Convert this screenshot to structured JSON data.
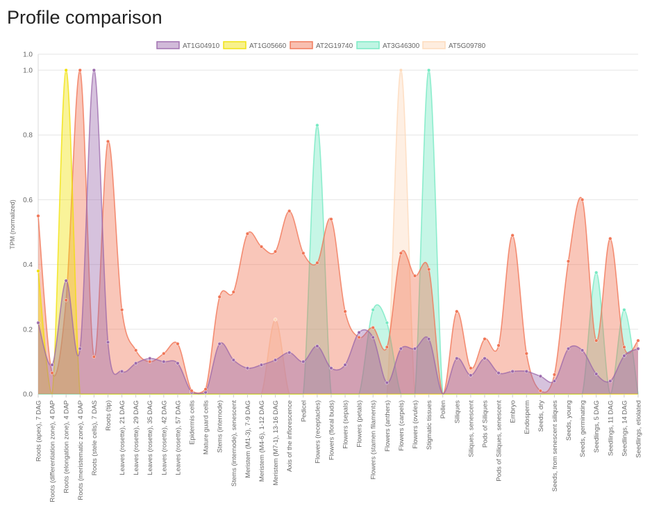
{
  "page": {
    "title": "Profile comparison"
  },
  "chart_data": {
    "type": "area",
    "title": "",
    "xlabel": "",
    "ylabel": "TPM (normalized)",
    "ylim": [
      0,
      1.0
    ],
    "yticks": [
      "0.0",
      "0.2",
      "0.4",
      "0.6",
      "0.8",
      "1.0"
    ],
    "ymax_label": "1.0",
    "grid": true,
    "legend_position": "top",
    "categories": [
      "Roots (apex), 7 DAG",
      "Roots (differentiation zone), 4 DAP",
      "Roots (elongation zone), 4 DAP",
      "Roots (meristematic zone), 4 DAP",
      "Roots (stele cells), 7 DAS",
      "Roots (tip)",
      "Leaves (rosette), 21 DAG",
      "Leaves (rosette), 29 DAG",
      "Leaves (rosette), 35 DAG",
      "Leaves (rosette), 42 DAG",
      "Leaves (rosette), 57 DAG",
      "Epidermis cells",
      "Mature guard cells",
      "Stems (internode)",
      "Stems (internode), senescent",
      "Meristem (M1-3), 7-9 DAG",
      "Meristem (M4-6), 1-12 DAG",
      "Meristem (M7-1), 13-16 DAG",
      "Axis of the inflorescence",
      "Pedicel",
      "Flowers (receptacles)",
      "Flowers (floral buds)",
      "Flowers (sepals)",
      "Flowers (petals)",
      "Flowers (stamen filaments)",
      "Flowers (anthers)",
      "Flowers (carpels)",
      "Flowers (ovules)",
      "Stigmatic tissues",
      "Pollen",
      "Siliques",
      "Siliques, senescent",
      "Pods of Siliques",
      "Pods of Siliques, senescent",
      "Embryo",
      "Endosperm",
      "Seeds, dry",
      "Seeds, from senescent siliques",
      "Seeds, young",
      "Seeds, germinating",
      "Seedlings, 5 DAG",
      "Seedlings, 11 DAG",
      "Seedlings, 14 DAG",
      "Seedlings, etiolated"
    ],
    "series": [
      {
        "name": "AT1G04910",
        "color": "#9966aa",
        "values": [
          0.22,
          0.09,
          0.35,
          0.14,
          1.0,
          0.16,
          0.07,
          0.095,
          0.11,
          0.1,
          0.095,
          0.005,
          0.005,
          0.155,
          0.105,
          0.08,
          0.09,
          0.105,
          0.128,
          0.1,
          0.148,
          0.08,
          0.09,
          0.19,
          0.175,
          0.035,
          0.14,
          0.14,
          0.17,
          0.0,
          0.11,
          0.058,
          0.11,
          0.065,
          0.07,
          0.07,
          0.055,
          0.04,
          0.14,
          0.135,
          0.062,
          0.04,
          0.118,
          0.14
        ]
      },
      {
        "name": "AT1G05660",
        "color": "#f0e000",
        "values": [
          0.38,
          0.0,
          1.0,
          0.0,
          0.0,
          0.0,
          0.0,
          0.0,
          0.0,
          0.0,
          0.0,
          0.0,
          0.0,
          0.0,
          0.0,
          0.0,
          0.0,
          0.0,
          0.0,
          0.0,
          0.0,
          0.0,
          0.0,
          0.0,
          0.0,
          0.0,
          0.0,
          0.0,
          0.0,
          0.0,
          0.0,
          0.0,
          0.0,
          0.0,
          0.0,
          0.0,
          0.0,
          0.0,
          0.0,
          0.0,
          0.0,
          0.0,
          0.0,
          0.0
        ]
      },
      {
        "name": "AT2G19740",
        "color": "#f07050",
        "values": [
          0.55,
          0.065,
          0.29,
          1.0,
          0.115,
          0.78,
          0.26,
          0.135,
          0.1,
          0.125,
          0.155,
          0.01,
          0.015,
          0.3,
          0.315,
          0.495,
          0.455,
          0.44,
          0.565,
          0.435,
          0.405,
          0.54,
          0.255,
          0.175,
          0.205,
          0.145,
          0.435,
          0.365,
          0.385,
          0.0,
          0.255,
          0.08,
          0.17,
          0.15,
          0.49,
          0.125,
          0.01,
          0.06,
          0.41,
          0.6,
          0.165,
          0.48,
          0.145,
          0.165
        ]
      },
      {
        "name": "AT3G46300",
        "color": "#70e8c0",
        "values": [
          0.0,
          0.0,
          0.0,
          0.0,
          0.0,
          0.0,
          0.0,
          0.0,
          0.0,
          0.0,
          0.0,
          0.0,
          0.0,
          0.0,
          0.0,
          0.0,
          0.0,
          0.0,
          0.0,
          0.0,
          0.83,
          0.0,
          0.0,
          0.0,
          0.26,
          0.22,
          0.0,
          0.0,
          1.0,
          0.0,
          0.0,
          0.0,
          0.0,
          0.0,
          0.0,
          0.0,
          0.0,
          0.0,
          0.0,
          0.0,
          0.375,
          0.0,
          0.26,
          0.0
        ]
      },
      {
        "name": "AT5G09780",
        "color": "#fdd8b8",
        "values": [
          0.0,
          0.0,
          0.0,
          0.0,
          0.0,
          0.0,
          0.0,
          0.0,
          0.0,
          0.0,
          0.0,
          0.0,
          0.0,
          0.0,
          0.0,
          0.0,
          0.0,
          0.23,
          0.0,
          0.0,
          0.0,
          0.0,
          0.0,
          0.0,
          0.0,
          0.0,
          1.0,
          0.0,
          0.0,
          0.0,
          0.0,
          0.0,
          0.0,
          0.0,
          0.0,
          0.0,
          0.0,
          0.0,
          0.0,
          0.0,
          0.0,
          0.0,
          0.0,
          0.0
        ]
      }
    ]
  }
}
